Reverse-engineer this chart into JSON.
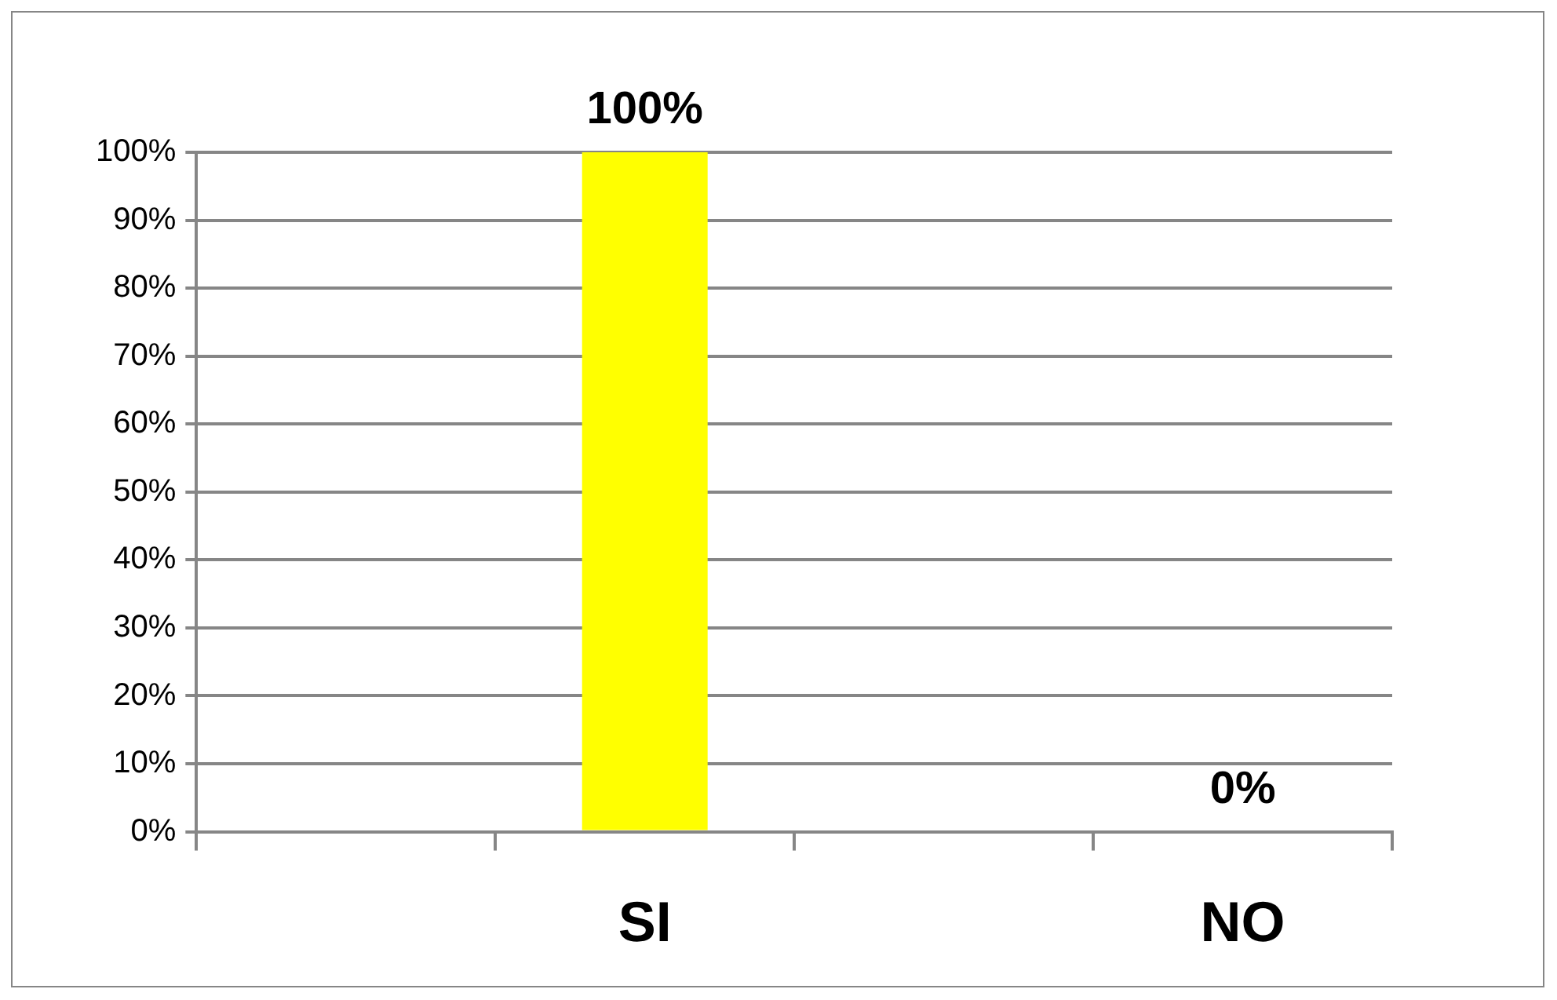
{
  "chart_data": {
    "type": "bar",
    "categories": [
      null,
      "SI",
      null,
      "NO"
    ],
    "values": [
      null,
      100,
      null,
      0
    ],
    "colors": [
      "#ffff00",
      "#ffff00",
      "#c00000",
      "#c00000"
    ],
    "value_labels": [
      null,
      "100%",
      null,
      "0%"
    ],
    "ylim": [
      0,
      100
    ],
    "yticks": [
      {
        "value": 0,
        "label": "0%"
      },
      {
        "value": 10,
        "label": "10%"
      },
      {
        "value": 20,
        "label": "20%"
      },
      {
        "value": 30,
        "label": "30%"
      },
      {
        "value": 40,
        "label": "40%"
      },
      {
        "value": 50,
        "label": "50%"
      },
      {
        "value": 60,
        "label": "60%"
      },
      {
        "value": 70,
        "label": "70%"
      },
      {
        "value": 80,
        "label": "80%"
      },
      {
        "value": 90,
        "label": "90%"
      },
      {
        "value": 100,
        "label": "100%"
      }
    ],
    "grid": "y"
  }
}
